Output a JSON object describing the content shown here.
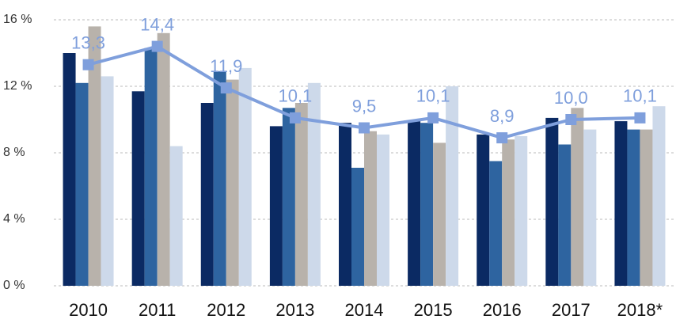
{
  "chart_data": {
    "type": "bar",
    "categories": [
      "2010",
      "2011",
      "2012",
      "2013",
      "2014",
      "2015",
      "2016",
      "2017",
      "2018*"
    ],
    "series": [
      {
        "color": "#0b2a63",
        "values": [
          14.0,
          11.7,
          11.0,
          9.6,
          9.8,
          9.9,
          9.1,
          10.1,
          9.9
        ]
      },
      {
        "color": "#2e64a0",
        "values": [
          12.2,
          14.3,
          12.9,
          10.7,
          7.1,
          9.8,
          7.5,
          8.5,
          9.4
        ]
      },
      {
        "color": "#b8b2ab",
        "values": [
          15.6,
          15.2,
          12.4,
          11.0,
          9.3,
          8.6,
          8.8,
          10.7,
          9.4
        ]
      },
      {
        "color": "#cdd9ea",
        "values": [
          12.6,
          8.4,
          13.1,
          12.2,
          9.1,
          12.0,
          9.0,
          9.4,
          10.8
        ]
      },
      {
        "type": "line",
        "color": "#7f9fdc",
        "values": [
          13.3,
          14.4,
          11.9,
          10.1,
          9.5,
          10.1,
          8.9,
          10.0,
          10.1
        ],
        "value_labels": [
          "13,3",
          "14,4",
          "11,9",
          "10,1",
          "9,5",
          "10,1",
          "8,9",
          "10,0",
          "10,1"
        ]
      }
    ],
    "ylim": [
      0,
      16
    ],
    "yticks": [
      {
        "value": 0,
        "label": "0 %"
      },
      {
        "value": 4,
        "label": "4 %"
      },
      {
        "value": 8,
        "label": "8 %"
      },
      {
        "value": 12,
        "label": "12 %"
      },
      {
        "value": 16,
        "label": "16 %"
      }
    ],
    "grid": true
  }
}
